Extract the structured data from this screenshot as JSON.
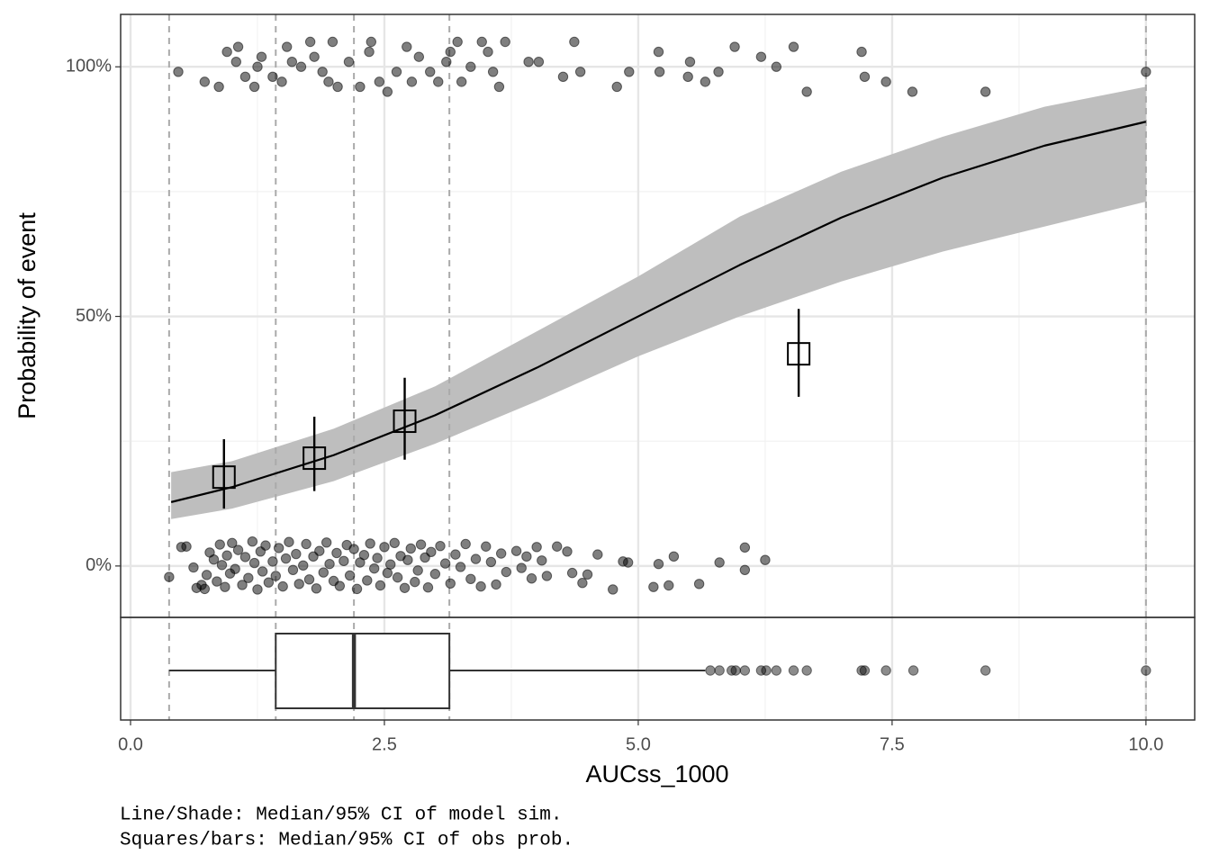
{
  "chart_data": {
    "type": "exposure-response",
    "x_label": "AUCss_1000",
    "y_label": "Probability of event",
    "caption": [
      "Line/Shade: Median/95% CI of model sim.",
      "Squares/bars: Median/95% CI of obs prob."
    ],
    "xlim": [
      -0.0975,
      10.48
    ],
    "ylim": [
      -10.3,
      110.5
    ],
    "xticks": [
      {
        "value": 0,
        "label": "0.0"
      },
      2.5,
      {
        "value": 5,
        "label": "5.0"
      },
      7.5,
      {
        "value": 10,
        "label": "10.0"
      }
    ],
    "yticks": [
      {
        "value": 0,
        "label": "0%"
      },
      {
        "value": 50,
        "label": "50%"
      },
      {
        "value": 100,
        "label": "100%"
      }
    ],
    "xminorticks": [
      1.25,
      3.75,
      6.25,
      8.75
    ],
    "yminorticks": [
      25,
      75
    ],
    "grid": true,
    "model": {
      "color": "#000000",
      "band_color": "#bebebe",
      "x": [
        0.4,
        1,
        2,
        3,
        4,
        5,
        6,
        7,
        8,
        9,
        10
      ],
      "median": [
        12.8,
        15.8,
        22.2,
        30.2,
        39.7,
        50,
        60.3,
        69.8,
        77.8,
        84.2,
        89.0
      ],
      "lower": [
        9.4,
        11.5,
        17,
        24.5,
        33,
        42,
        50,
        57,
        63,
        68,
        73
      ],
      "upper": [
        18.8,
        21,
        27.5,
        36,
        47,
        58,
        70,
        79,
        86,
        92,
        96
      ]
    },
    "observed": {
      "x": [
        0.92,
        1.81,
        2.7,
        6.58
      ],
      "median": [
        17.8,
        21.6,
        29.0,
        42.5
      ],
      "lower": [
        11.5,
        15.0,
        21.3,
        33.9
      ],
      "upper": [
        25.4,
        29.9,
        37.7,
        51.5
      ]
    },
    "quantile_lines": [
      0.38,
      1.43,
      2.2,
      3.14,
      10.0
    ],
    "events": {
      "color": "#000000",
      "x": [
        0.47,
        0.73,
        0.87,
        0.95,
        1.04,
        1.06,
        1.13,
        1.22,
        1.25,
        1.29,
        1.4,
        1.49,
        1.54,
        1.59,
        1.68,
        1.77,
        1.81,
        1.89,
        1.99,
        1.95,
        2.04,
        2.15,
        2.26,
        2.35,
        2.37,
        2.45,
        2.53,
        2.62,
        2.72,
        2.77,
        2.84,
        2.95,
        3.03,
        3.11,
        3.15,
        3.22,
        3.26,
        3.35,
        3.46,
        3.52,
        3.57,
        3.63,
        3.69,
        3.92,
        4.02,
        4.26,
        4.37,
        4.43,
        4.79,
        4.91,
        5.2,
        5.21,
        5.51,
        5.49,
        5.66,
        5.79,
        5.95,
        6.21,
        6.36,
        6.53,
        6.66,
        7.2,
        7.23,
        7.44,
        7.7,
        8.42,
        10.0
      ],
      "values": [
        99,
        97,
        96,
        103,
        101,
        104,
        98,
        96,
        100,
        102,
        98,
        97,
        104,
        101,
        100,
        105,
        102,
        99,
        105,
        97,
        96,
        101,
        96,
        103,
        105,
        97,
        95,
        99,
        104,
        97,
        102,
        99,
        97,
        101,
        103,
        105,
        97,
        100,
        105,
        103,
        99,
        96,
        105,
        101,
        101,
        98,
        105,
        99,
        96,
        99,
        103,
        99,
        101,
        98,
        97,
        99,
        104,
        102,
        100,
        104,
        95,
        103,
        98,
        97,
        95,
        95,
        99
      ]
    },
    "non_events": {
      "color": "#000000",
      "x": [
        0.38,
        0.5,
        0.55,
        0.62,
        0.65,
        0.7,
        0.73,
        0.75,
        0.78,
        0.82,
        0.85,
        0.88,
        0.9,
        0.93,
        0.95,
        0.98,
        1.0,
        1.03,
        1.06,
        1.1,
        1.13,
        1.16,
        1.2,
        1.22,
        1.25,
        1.28,
        1.3,
        1.33,
        1.36,
        1.4,
        1.43,
        1.46,
        1.5,
        1.53,
        1.56,
        1.6,
        1.63,
        1.66,
        1.7,
        1.73,
        1.76,
        1.8,
        1.83,
        1.86,
        1.9,
        1.93,
        1.96,
        2.0,
        2.03,
        2.06,
        2.1,
        2.13,
        2.16,
        2.2,
        2.23,
        2.26,
        2.3,
        2.33,
        2.36,
        2.4,
        2.43,
        2.46,
        2.5,
        2.53,
        2.56,
        2.6,
        2.63,
        2.66,
        2.7,
        2.73,
        2.76,
        2.8,
        2.83,
        2.86,
        2.9,
        2.93,
        2.96,
        3.0,
        3.05,
        3.1,
        3.15,
        3.2,
        3.25,
        3.3,
        3.35,
        3.4,
        3.45,
        3.5,
        3.55,
        3.6,
        3.65,
        3.7,
        3.8,
        3.85,
        3.9,
        3.95,
        4.0,
        4.05,
        4.1,
        4.2,
        4.3,
        4.35,
        4.45,
        4.5,
        4.6,
        4.75,
        4.85,
        4.9,
        5.15,
        5.2,
        5.3,
        5.35,
        5.6,
        5.8,
        6.05,
        6.05,
        6.25
      ],
      "values": [
        -2.2,
        3.8,
        3.9,
        -0.3,
        -4.4,
        -3.8,
        -4.6,
        -1.8,
        2.7,
        1.3,
        -3.1,
        4.3,
        0.2,
        -4.2,
        2.1,
        -1.5,
        4.6,
        -0.6,
        3.2,
        -3.8,
        1.8,
        -2.4,
        4.9,
        0.6,
        -4.7,
        2.9,
        -1.1,
        4.1,
        -3.3,
        0.9,
        -2.0,
        3.6,
        -4.1,
        1.5,
        4.8,
        -0.8,
        2.4,
        -3.6,
        0.1,
        4.4,
        -2.7,
        1.9,
        -4.5,
        3.0,
        -1.3,
        4.7,
        0.4,
        -3.0,
        2.6,
        -4.0,
        1.0,
        4.2,
        -1.9,
        3.4,
        -4.6,
        0.7,
        2.2,
        -2.9,
        4.5,
        -0.5,
        1.6,
        -3.9,
        3.8,
        -1.4,
        0.3,
        4.6,
        -2.3,
        2.0,
        -4.4,
        1.2,
        3.5,
        -3.2,
        -0.9,
        4.3,
        1.7,
        -4.3,
        2.8,
        -1.6,
        4.0,
        0.5,
        -3.5,
        2.3,
        -0.2,
        4.4,
        -2.6,
        1.4,
        -4.1,
        3.9,
        0.8,
        -3.7,
        2.5,
        -1.2,
        3.0,
        -0.4,
        1.9,
        -2.5,
        3.8,
        1.1,
        -2.0,
        3.9,
        2.9,
        -1.4,
        -3.4,
        -1.7,
        2.3,
        -4.7,
        0.9,
        0.7,
        -4.2,
        0.4,
        -3.9,
        1.9,
        -3.6,
        0.7,
        3.7,
        -0.8,
        1.2
      ]
    },
    "boxplot": {
      "min": 0.38,
      "q1": 1.43,
      "median": 2.2,
      "q3": 3.14,
      "whisker_high": 5.66,
      "outliers": [
        5.71,
        5.8,
        5.92,
        5.96,
        6.05,
        6.21,
        6.26,
        6.36,
        6.53,
        6.66,
        7.2,
        7.23,
        7.44,
        7.71,
        8.42,
        10.0
      ]
    }
  }
}
